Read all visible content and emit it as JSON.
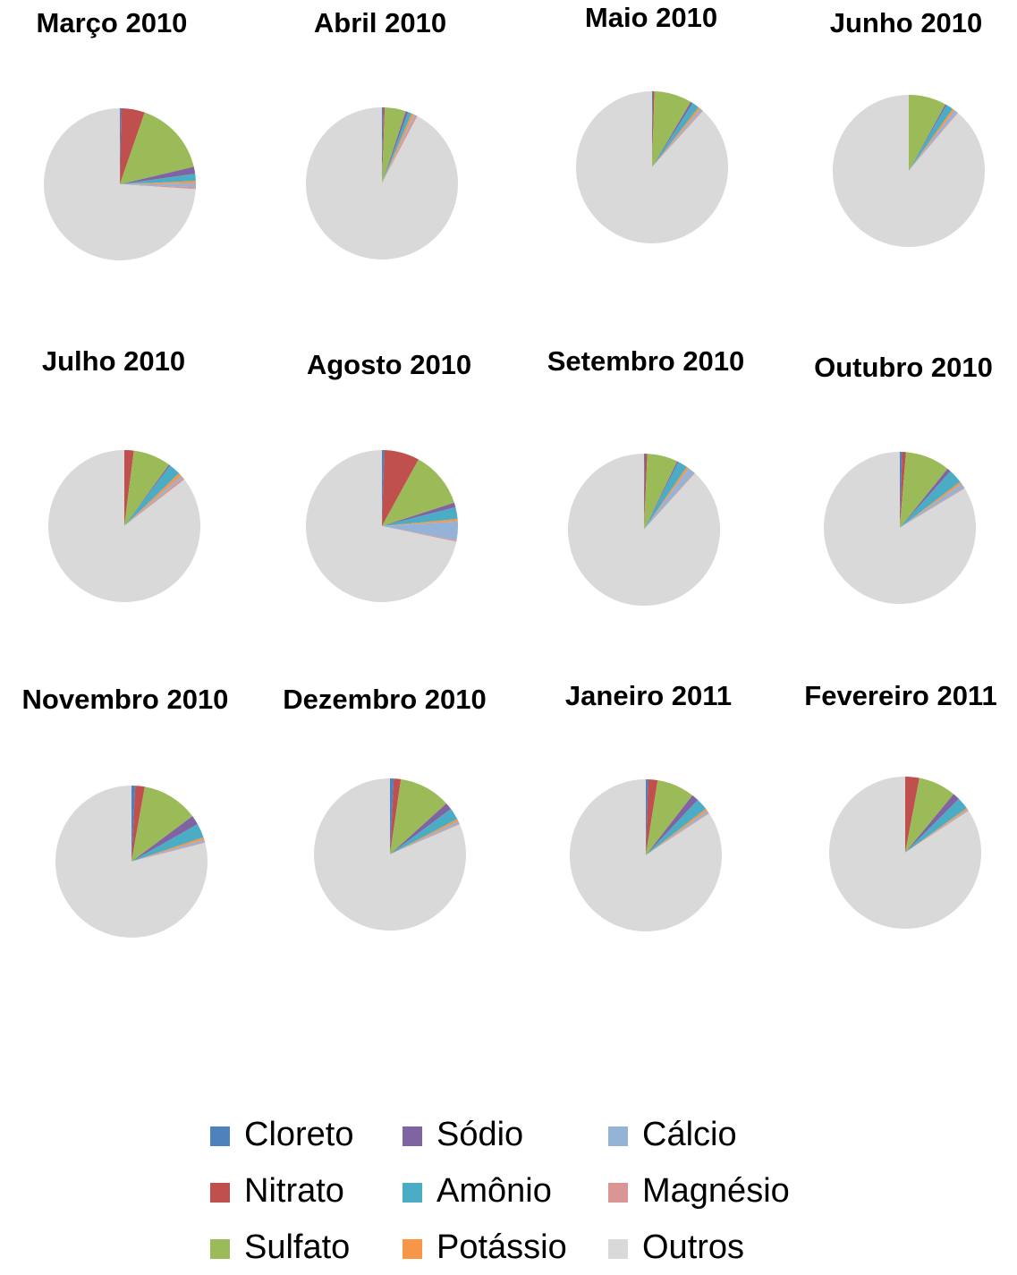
{
  "chart_data": [
    {
      "type": "pie",
      "title": "Março 2010",
      "values": [
        0.3,
        5,
        16,
        1.5,
        1.5,
        0.5,
        0.8,
        0.4,
        74
      ]
    },
    {
      "type": "pie",
      "title": "Abril 2010",
      "values": [
        0.3,
        0.3,
        4.5,
        0.5,
        0.8,
        0.5,
        0.3,
        0.5,
        92.3
      ]
    },
    {
      "type": "pie",
      "title": "Maio 2010",
      "values": [
        0.2,
        0.3,
        8,
        0.5,
        1.5,
        0.5,
        0.5,
        0.2,
        88.3
      ]
    },
    {
      "type": "pie",
      "title": "Junho 2010",
      "values": [
        0,
        0,
        8,
        0.3,
        1.5,
        0.5,
        0.7,
        0.2,
        88.8
      ]
    },
    {
      "type": "pie",
      "title": "Julho 2010",
      "values": [
        0,
        2,
        8,
        0.3,
        2.5,
        0.7,
        0.5,
        0.5,
        85.5
      ]
    },
    {
      "type": "pie",
      "title": "Agosto 2010",
      "values": [
        0.5,
        7.5,
        12,
        1,
        2.5,
        0.5,
        4,
        0.3,
        71.7
      ]
    },
    {
      "type": "pie",
      "title": "Setembro 2010",
      "values": [
        0.2,
        0.5,
        6.5,
        0.3,
        2,
        0.5,
        1.5,
        0.2,
        88.3
      ]
    },
    {
      "type": "pie",
      "title": "Outubro 2010",
      "values": [
        0.5,
        0.8,
        9.5,
        0.8,
        3,
        0.5,
        1,
        0.2,
        83.7
      ]
    },
    {
      "type": "pie",
      "title": "Novembro 2010",
      "values": [
        0.8,
        2,
        12,
        2,
        3,
        0.5,
        0.5,
        0.2,
        79
      ]
    },
    {
      "type": "pie",
      "title": "Dezembro 2010",
      "values": [
        0.8,
        1.5,
        11,
        1.5,
        2.5,
        0.5,
        0.5,
        0.2,
        81.5
      ]
    },
    {
      "type": "pie",
      "title": "Janeiro 2011",
      "values": [
        0.5,
        2,
        8,
        1.5,
        2.5,
        0.5,
        0.5,
        0.2,
        84.3
      ]
    },
    {
      "type": "pie",
      "title": "Fevereiro 2011",
      "values": [
        0,
        3,
        8,
        1.5,
        2.5,
        0.3,
        0.2,
        0.2,
        84.3
      ]
    }
  ],
  "legend": {
    "categories": [
      "Cloreto",
      "Nitrato",
      "Sulfato",
      "Sódio",
      "Amônio",
      "Potássio",
      "Cálcio",
      "Magnésio",
      "Outros"
    ],
    "colors": [
      "#4f81bd",
      "#c0504d",
      "#9bbb59",
      "#8064a2",
      "#4bacc6",
      "#f79646",
      "#95b3d7",
      "#d99694",
      "#d9d9d9"
    ]
  }
}
